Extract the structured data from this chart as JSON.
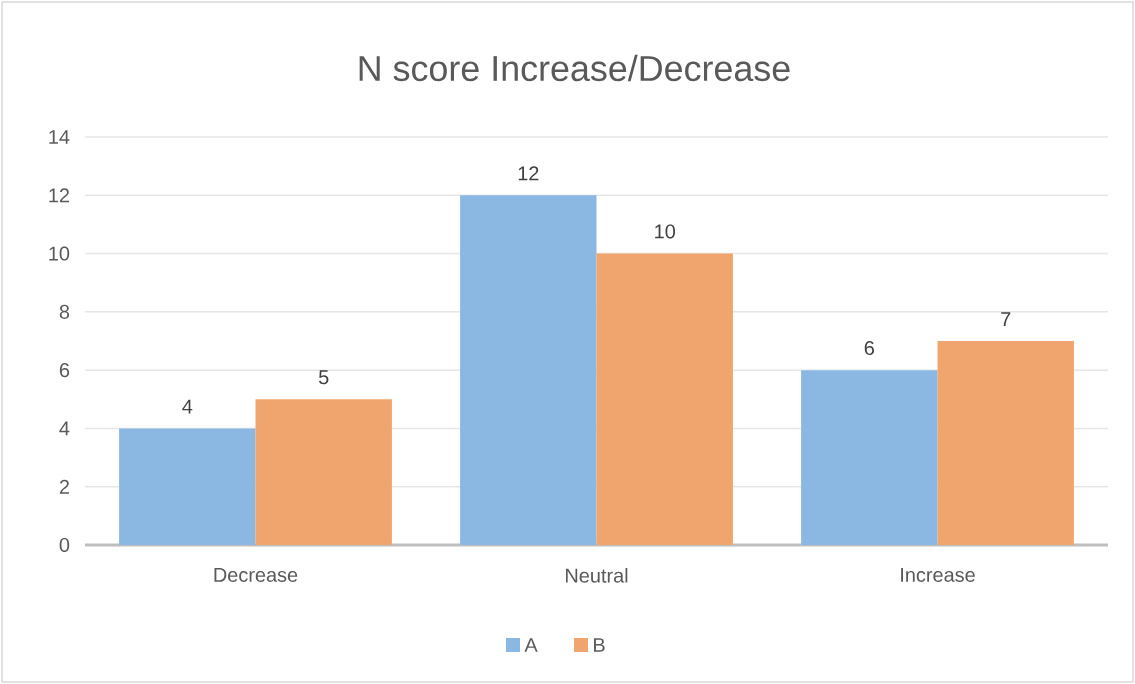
{
  "chart_data": {
    "type": "bar",
    "title": "N score Increase/Decrease",
    "categories": [
      "Decrease",
      "Neutral",
      "Increase"
    ],
    "series": [
      {
        "name": "A",
        "color": "#8bb8e2",
        "values": [
          4,
          12,
          6
        ]
      },
      {
        "name": "B",
        "color": "#f0a46e",
        "values": [
          5,
          10,
          7
        ]
      }
    ],
    "ylim": [
      0,
      14
    ],
    "yticks": [
      0,
      2,
      4,
      6,
      8,
      10,
      12,
      14
    ],
    "grid": "y",
    "legend": "bottom",
    "data_labels": true
  }
}
